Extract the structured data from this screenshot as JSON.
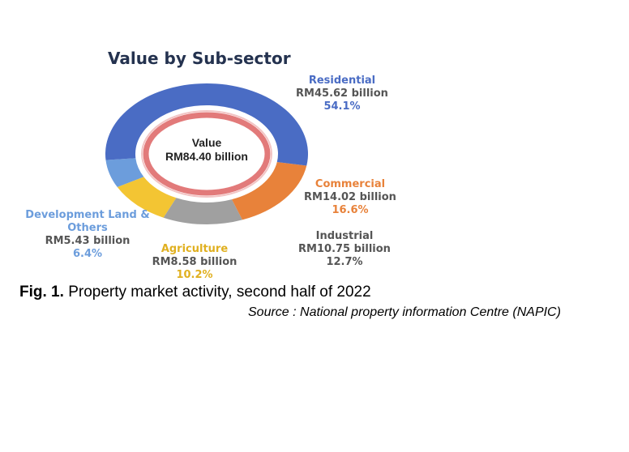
{
  "chart_data": {
    "type": "donut",
    "title": "Value by Sub-sector",
    "center_label": "Value",
    "center_value_label": "RM84.40 billion",
    "categories": [
      "Residential",
      "Commercial",
      "Industrial",
      "Agriculture",
      "Development Land & Others"
    ],
    "values": [
      45.62,
      14.02,
      10.75,
      8.58,
      5.43
    ],
    "value_labels": [
      "RM45.62 billion",
      "RM14.02 billion",
      "RM10.75 billion",
      "RM8.58 billion",
      "RM5.43 billion"
    ],
    "percents": [
      54.1,
      16.6,
      12.7,
      10.2,
      6.4
    ],
    "percent_labels": [
      "54.1%",
      "16.6%",
      "12.7%",
      "10.2%",
      "6.4%"
    ],
    "colors": [
      "#4a6cc4",
      "#e8823a",
      "#a0a0a0",
      "#f3c533",
      "#6c9ddc"
    ]
  },
  "caption": {
    "label": "Fig. 1.",
    "text": "Property market activity, second half of 2022"
  },
  "source": "Source : National property information Centre (NAPIC)"
}
